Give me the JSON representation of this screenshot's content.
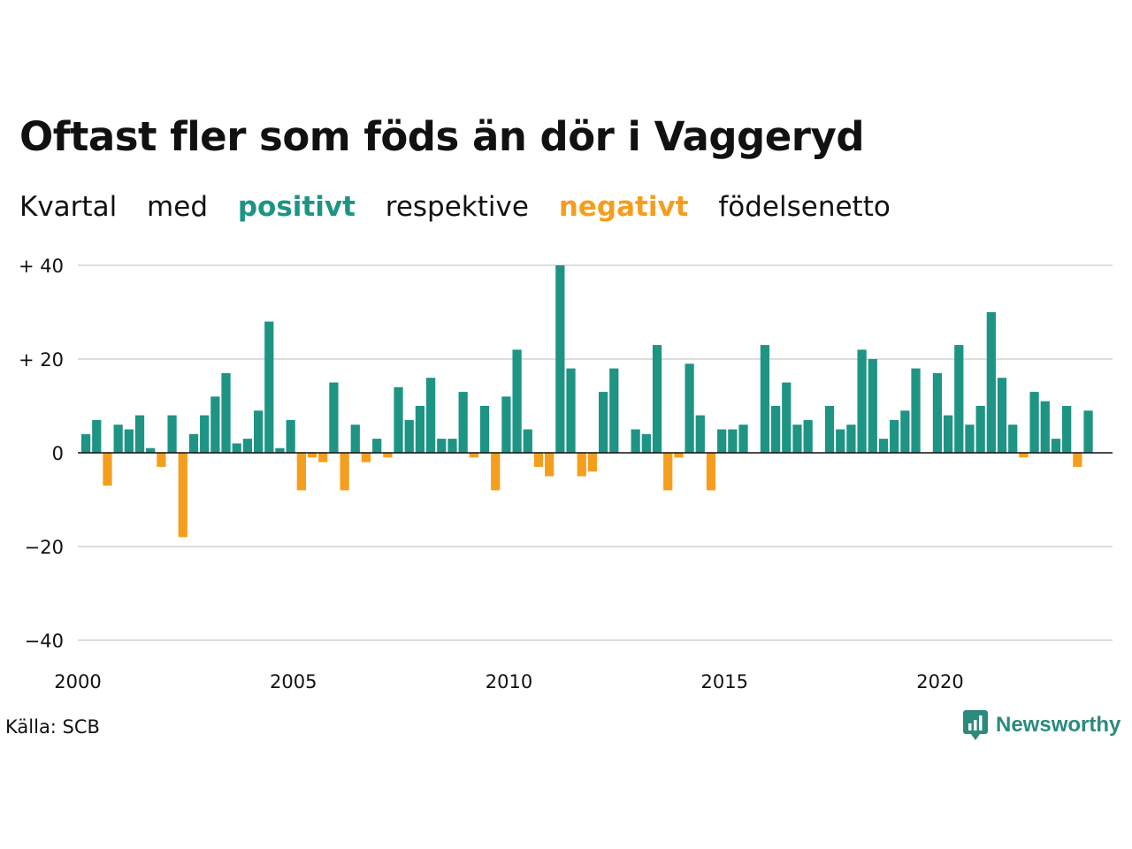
{
  "chart_data": {
    "type": "bar",
    "title": "Oftast fler som föds än dör i Vaggeryd",
    "subtitle": {
      "part1": "Kvartal",
      "part2": "med",
      "positive": "positivt",
      "part3": "respektive",
      "negative": "negativt",
      "part4": "födelsenetto"
    },
    "x_start": 2000.0,
    "x_step": 0.25,
    "values": [
      4,
      7,
      -7,
      6,
      5,
      8,
      1,
      -3,
      8,
      -18,
      4,
      8,
      12,
      17,
      2,
      3,
      9,
      28,
      1,
      7,
      -8,
      -1,
      -2,
      15,
      -8,
      6,
      -2,
      3,
      -1,
      14,
      7,
      10,
      16,
      3,
      3,
      13,
      -1,
      10,
      -8,
      12,
      22,
      5,
      -3,
      -5,
      40,
      18,
      -5,
      -4,
      13,
      18,
      0,
      5,
      4,
      23,
      -8,
      -1,
      19,
      8,
      -8,
      5,
      5,
      6,
      0,
      23,
      10,
      15,
      6,
      7,
      0,
      10,
      5,
      6,
      22,
      20,
      3,
      7,
      9,
      18,
      0,
      17,
      8,
      23,
      6,
      10,
      30,
      16,
      6,
      -1,
      13,
      11,
      3,
      10,
      -3,
      9
    ],
    "ylim": [
      -40,
      40
    ],
    "yticks": [
      {
        "value": 40,
        "label": "+ 40"
      },
      {
        "value": 20,
        "label": "+ 20"
      },
      {
        "value": 0,
        "label": "0"
      },
      {
        "value": -20,
        "label": "−20"
      },
      {
        "value": -40,
        "label": "−40"
      }
    ],
    "xticks": [
      {
        "value": 2000,
        "label": "2000"
      },
      {
        "value": 2005,
        "label": "2005"
      },
      {
        "value": 2010,
        "label": "2010"
      },
      {
        "value": 2015,
        "label": "2015"
      },
      {
        "value": 2020,
        "label": "2020"
      }
    ],
    "colors": {
      "positive": "#1e9484",
      "negative": "#f59e1d",
      "grid": "#dddddd",
      "zero": "#111111"
    },
    "grid": true
  },
  "footer": {
    "source": "Källa: SCB",
    "brand": "Newsworthy",
    "brand_icon": "chart-bubble-icon",
    "brand_color": "#2b8a7d"
  }
}
